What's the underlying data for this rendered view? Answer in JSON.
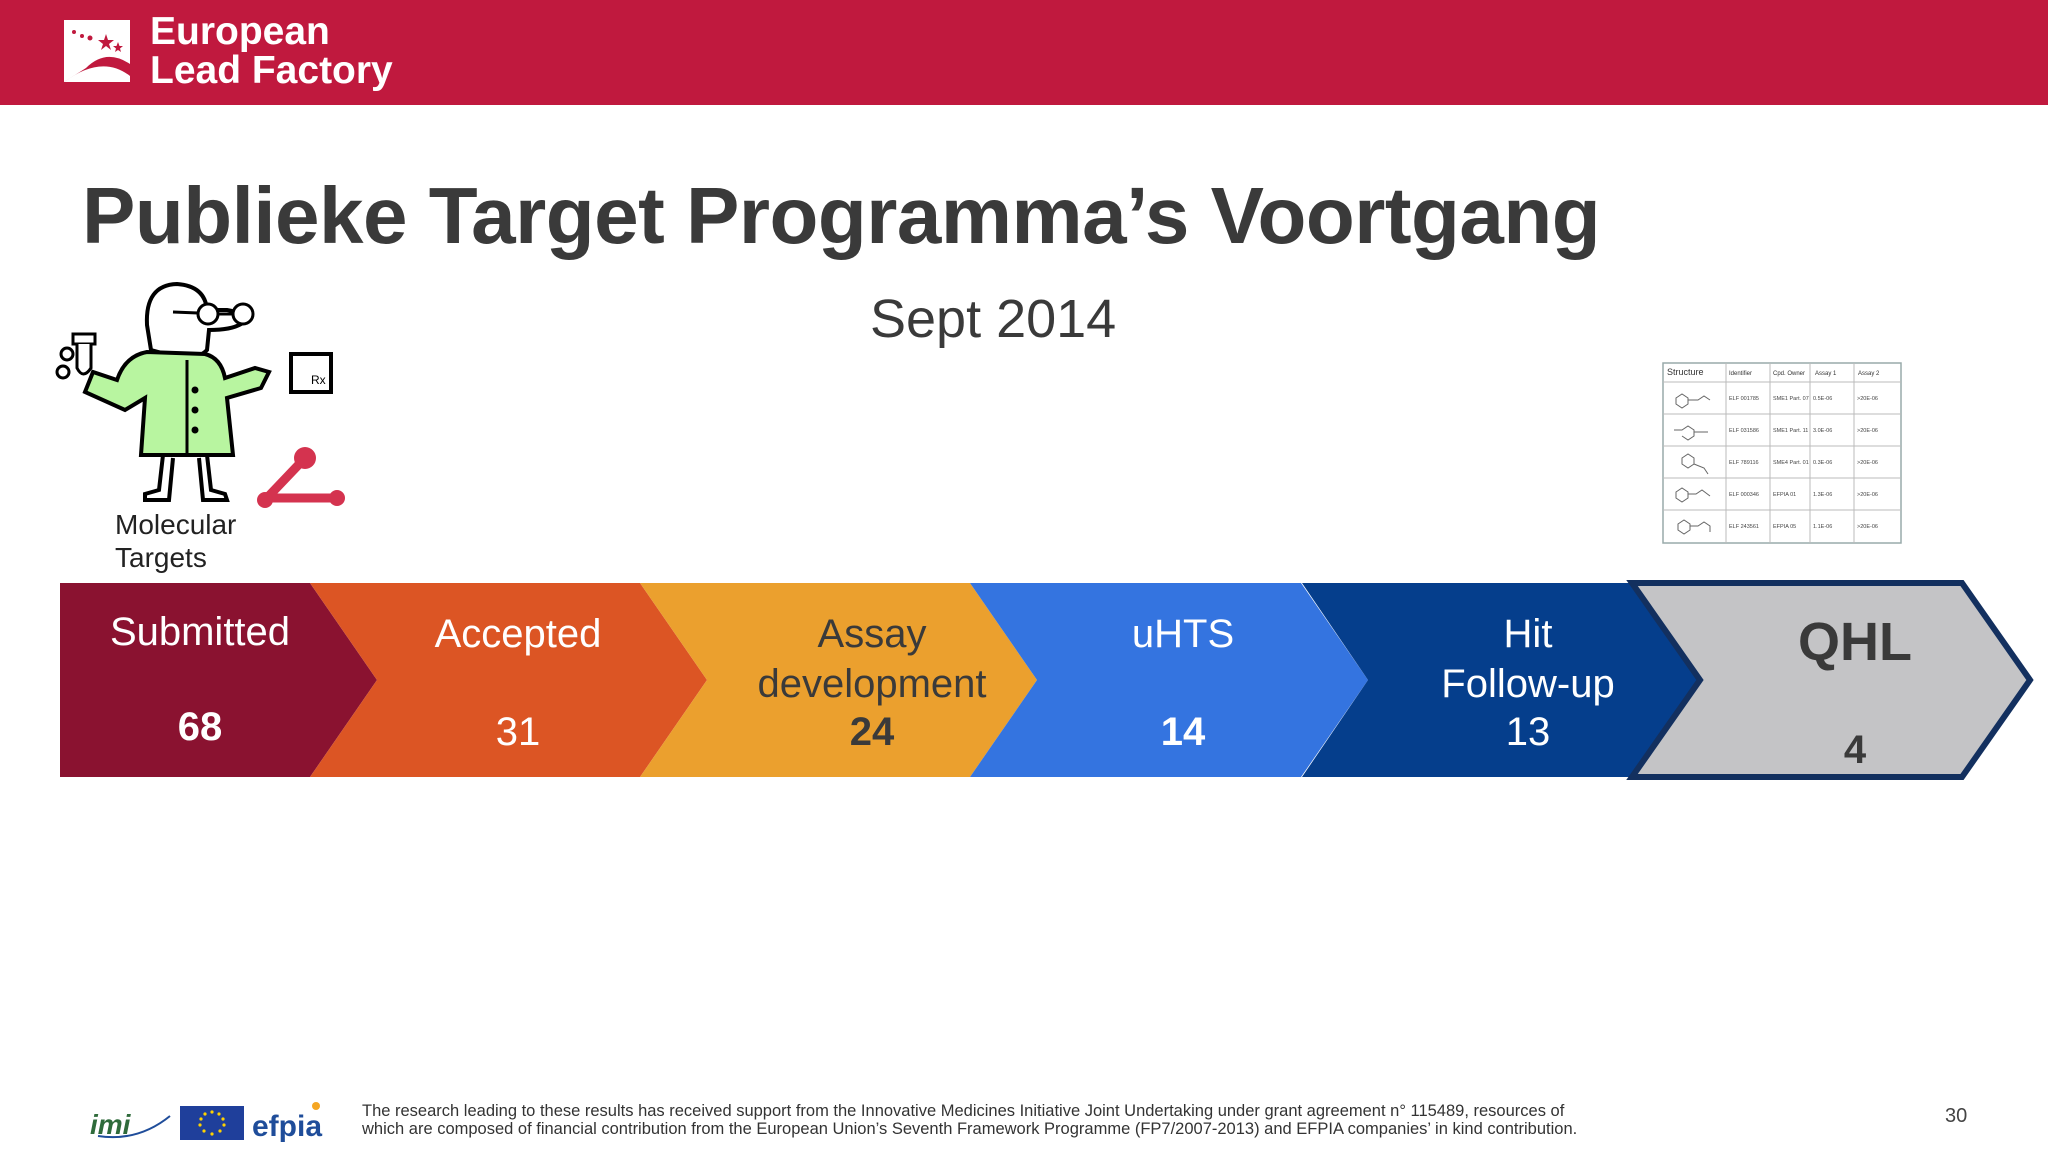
{
  "header": {
    "brand_line1": "European",
    "brand_line2": "Lead Factory",
    "colors": {
      "background": "#c0193e",
      "text": "#ffffff"
    }
  },
  "slide": {
    "title": "Publieke Target Programma’s Voortgang",
    "subtitle": "Sept 2014",
    "illustration_label_line1": "Molecular",
    "illustration_label_line2": "Targets",
    "illustration_icon": "scientist-icon",
    "table_icon": "compound-table-icon"
  },
  "stages": [
    {
      "label_line1": "Submitted",
      "label_line2": "",
      "count": "68",
      "color": "#8a1230"
    },
    {
      "label_line1": "Accepted",
      "label_line2": "",
      "count": "31",
      "color": "#dc5524"
    },
    {
      "label_line1": "Assay",
      "label_line2": "development",
      "count": "24",
      "color": "#eba02e"
    },
    {
      "label_line1": "uHTS",
      "label_line2": "",
      "count": "14",
      "color": "#3474e0"
    },
    {
      "label_line1": "Hit",
      "label_line2": "Follow-up",
      "count": "13",
      "color": "#053e8c"
    },
    {
      "label_line1": "QHL",
      "label_line2": "",
      "count": "4",
      "color": "#c4c4c6"
    }
  ],
  "mini_table": {
    "headers": [
      "Structure",
      "Identifier",
      "Cpd. Owner",
      "Assay 1",
      "Assay 2"
    ],
    "rows": [
      [
        "ELF 001785",
        "SME1 Part. 07",
        "0.5E-06",
        ">20E-06"
      ],
      [
        "ELF 031586",
        "SME1 Part. 11",
        "3.0E-06",
        ">20E-06"
      ],
      [
        "ELF 789116",
        "SME4 Part. 01",
        "0.3E-06",
        ">20E-06"
      ],
      [
        "ELF 000346",
        "EFPIA 01",
        "1.3E-06",
        ">20E-06"
      ],
      [
        "ELF 243561",
        "EFPIA 05",
        "1.1E-06",
        ">20E-06"
      ]
    ]
  },
  "footer": {
    "logos": [
      "imi",
      "EU flag",
      "efpia"
    ],
    "disclaimer_line1": "The research leading to these results has received support from the Innovative Medicines Initiative Joint Undertaking under grant agreement n° 115489, resources of",
    "disclaimer_line2": "which are composed of financial contribution from the European Union’s Seventh Framework Programme (FP7/2007-2013) and EFPIA companies’ in kind contribution.",
    "page_number": "30"
  }
}
